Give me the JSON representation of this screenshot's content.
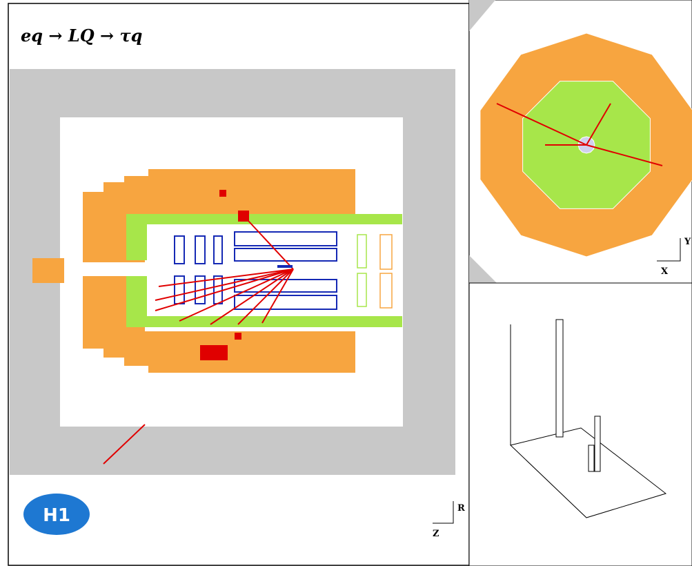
{
  "title": "eq → LQ → τq",
  "side_view_axes": {
    "vertical": "R",
    "horizontal": "Z"
  },
  "end_view_axes": {
    "vertical": "Y",
    "horizontal": "X"
  },
  "logo": "H1"
}
